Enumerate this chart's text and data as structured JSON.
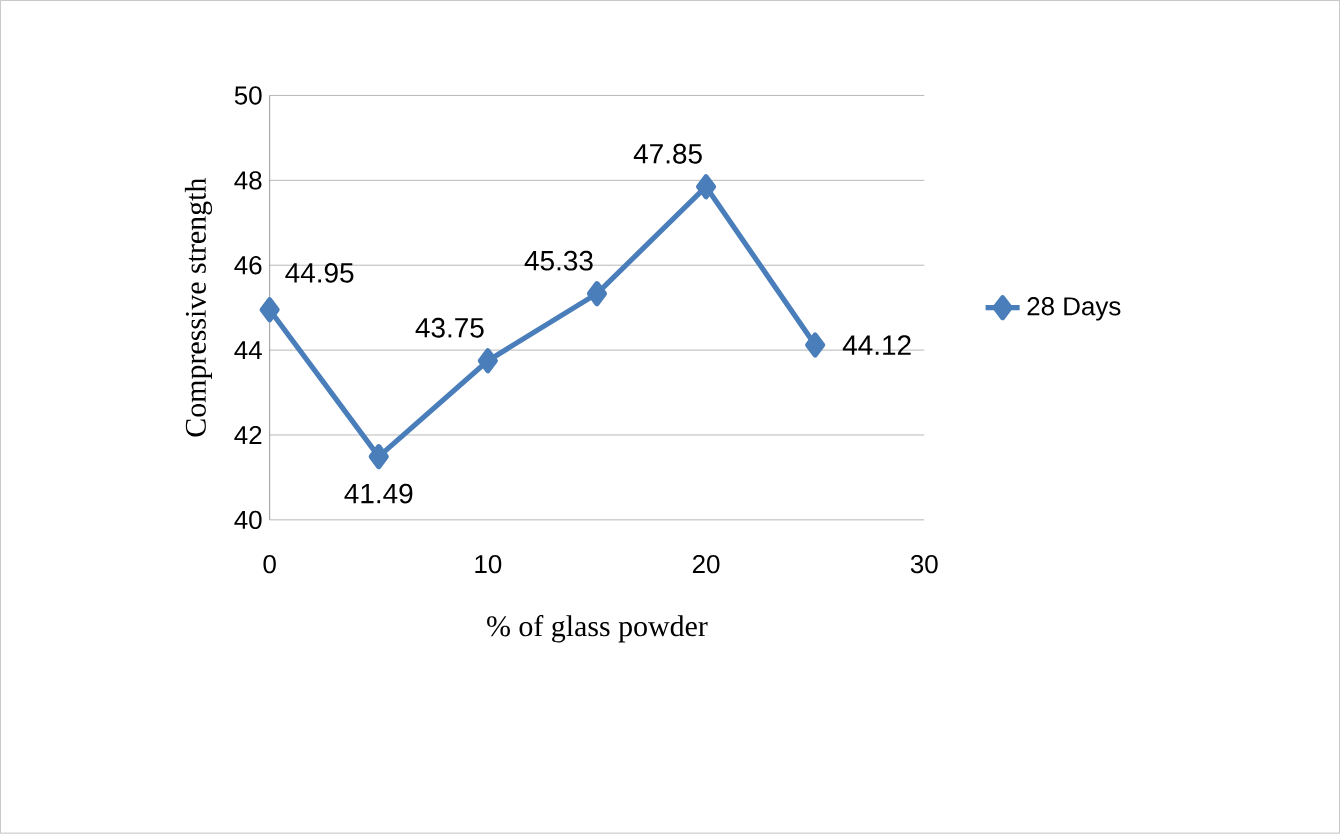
{
  "chart_data": {
    "type": "line",
    "xlabel": "% of glass powder",
    "ylabel": "Compressive strength",
    "x": [
      0,
      5,
      10,
      15,
      20,
      25
    ],
    "series": [
      {
        "name": "28 Days",
        "color": "#4a7ebb",
        "values": [
          44.95,
          41.49,
          43.75,
          45.33,
          47.85,
          44.12
        ]
      }
    ],
    "xlim": [
      0,
      30
    ],
    "xticks": [
      0,
      10,
      20,
      30
    ],
    "ylim": [
      40,
      50
    ],
    "yticks": [
      40,
      42,
      44,
      46,
      48,
      50
    ],
    "grid": "y",
    "legend": "right",
    "marker": "diamond",
    "line_style": "solid",
    "data_labels": true
  }
}
